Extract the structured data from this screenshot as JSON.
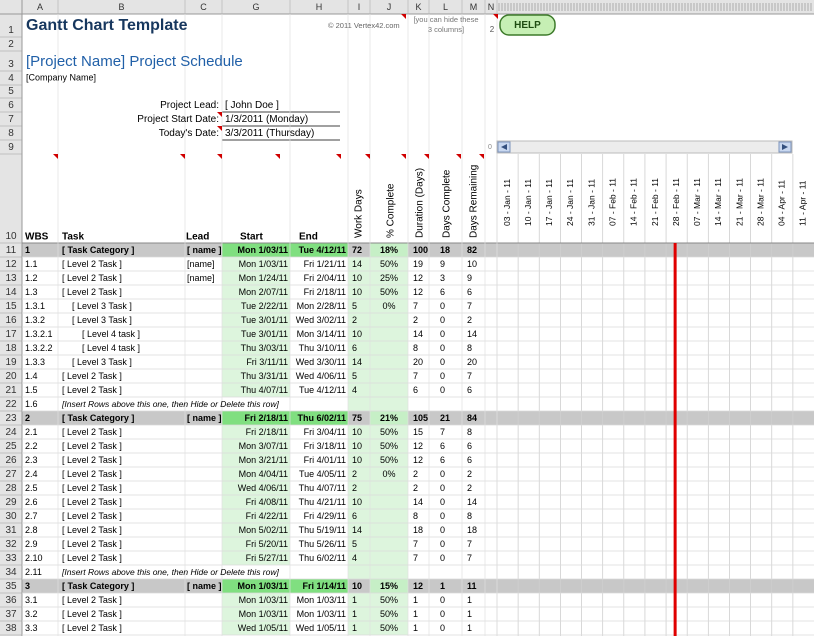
{
  "column_headers": [
    "A",
    "B",
    "C",
    "G",
    "H",
    "I",
    "J",
    "K",
    "L",
    "M",
    "N"
  ],
  "row_numbers": [
    1,
    2,
    3,
    4,
    5,
    6,
    7,
    8,
    9,
    10,
    11,
    12,
    13,
    14,
    15,
    16,
    17,
    18,
    19,
    20,
    21,
    22,
    23,
    24,
    25,
    26,
    27,
    28,
    29,
    30,
    31,
    32,
    33,
    34,
    35,
    36,
    37,
    38
  ],
  "header": {
    "title": "Gantt Chart Template",
    "copyright": "© 2011 Vertex42.com",
    "hide_note": [
      "[you can hide these",
      "3 columns]"
    ],
    "hide_count": 2,
    "help_button": "HELP",
    "project_title": "[Project Name] Project Schedule",
    "company": "[Company Name]",
    "fields": [
      {
        "label": "Project Lead:",
        "value": "[ John Doe ]"
      },
      {
        "label": "Project Start Date:",
        "value": "1/3/2011 (Monday)"
      },
      {
        "label": "Today's Date:",
        "value": "3/3/2011 (Thursday)"
      }
    ],
    "scroll_offset": 0
  },
  "table": {
    "columns": [
      "WBS",
      "Task",
      "Lead",
      "Start",
      "End",
      "Work Days",
      "% Complete",
      "Duration (Days)",
      "Days Complete",
      "Days Remaining"
    ],
    "timeline": [
      "03 - Jan - 11",
      "10 - Jan - 11",
      "17 - Jan - 11",
      "24 - Jan - 11",
      "31 - Jan - 11",
      "07 - Feb - 11",
      "14 - Feb - 11",
      "21 - Feb - 11",
      "28 - Feb - 11",
      "07 - Mar - 11",
      "14 - Mar - 11",
      "21 - Mar - 11",
      "28 - Mar - 11",
      "04 - Apr - 11",
      "11 - Apr - 11"
    ],
    "rows": [
      {
        "wbs": "1",
        "task": "[ Task Category ]",
        "lead": "[ name ]",
        "start": "Mon 1/03/11",
        "end": "Tue 4/12/11",
        "work_days": 72,
        "pct": "18%",
        "duration": 100,
        "days_complete": 18,
        "days_remaining": 82
      },
      {
        "wbs": "1.1",
        "task": "[ Level 2 Task ]",
        "lead": "[name]",
        "start": "Mon 1/03/11",
        "end": "Fri 1/21/11",
        "work_days": 14,
        "pct": "50%",
        "duration": 19,
        "days_complete": 9,
        "days_remaining": 10
      },
      {
        "wbs": "1.2",
        "task": "[ Level 2 Task ]",
        "lead": "[name]",
        "start": "Mon 1/24/11",
        "end": "Fri 2/04/11",
        "work_days": 10,
        "pct": "25%",
        "duration": 12,
        "days_complete": 3,
        "days_remaining": 9
      },
      {
        "wbs": "1.3",
        "task": "[ Level 2 Task ]",
        "start": "Mon 2/07/11",
        "end": "Fri 2/18/11",
        "work_days": 10,
        "pct": "50%",
        "duration": 12,
        "days_complete": 6,
        "days_remaining": 6
      },
      {
        "wbs": "1.3.1",
        "task": "[ Level 3 Task ]",
        "start": "Tue 2/22/11",
        "end": "Mon 2/28/11",
        "work_days": 5,
        "pct": "0%",
        "duration": 7,
        "days_complete": 0,
        "days_remaining": 7
      },
      {
        "wbs": "1.3.2",
        "task": "[ Level 3 Task ]",
        "start": "Tue 3/01/11",
        "end": "Wed 3/02/11",
        "work_days": 2,
        "duration": 2,
        "days_complete": 0,
        "days_remaining": 2
      },
      {
        "wbs": "1.3.2.1",
        "task": "[ Level 4 task ]",
        "start": "Tue 3/01/11",
        "end": "Mon 3/14/11",
        "work_days": 10,
        "duration": 14,
        "days_complete": 0,
        "days_remaining": 14
      },
      {
        "wbs": "1.3.2.2",
        "task": "[ Level 4 task ]",
        "start": "Thu 3/03/11",
        "end": "Thu 3/10/11",
        "work_days": 6,
        "duration": 8,
        "days_complete": 0,
        "days_remaining": 8
      },
      {
        "wbs": "1.3.3",
        "task": "[ Level 3 Task ]",
        "start": "Fri 3/11/11",
        "end": "Wed 3/30/11",
        "work_days": 14,
        "duration": 20,
        "days_complete": 0,
        "days_remaining": 20
      },
      {
        "wbs": "1.4",
        "task": "[ Level 2 Task ]",
        "start": "Thu 3/31/11",
        "end": "Wed 4/06/11",
        "work_days": 5,
        "duration": 7,
        "days_complete": 0,
        "days_remaining": 7
      },
      {
        "wbs": "1.5",
        "task": "[ Level 2 Task ]",
        "start": "Thu 4/07/11",
        "end": "Tue 4/12/11",
        "work_days": 4,
        "duration": 6,
        "days_complete": 0,
        "days_remaining": 6
      },
      {
        "wbs": "1.6",
        "note": "[Insert Rows above this one, then Hide or Delete this row]"
      },
      {
        "wbs": "2",
        "task": "[ Task Category ]",
        "lead": "[ name ]",
        "start": "Fri 2/18/11",
        "end": "Thu 6/02/11",
        "work_days": 75,
        "pct": "21%",
        "duration": 105,
        "days_complete": 21,
        "days_remaining": 84
      },
      {
        "wbs": "2.1",
        "task": "[ Level 2 Task ]",
        "start": "Fri 2/18/11",
        "end": "Fri 3/04/11",
        "work_days": 10,
        "pct": "50%",
        "duration": 15,
        "days_complete": 7,
        "days_remaining": 8
      },
      {
        "wbs": "2.2",
        "task": "[ Level 2 Task ]",
        "start": "Mon 3/07/11",
        "end": "Fri 3/18/11",
        "work_days": 10,
        "pct": "50%",
        "duration": 12,
        "days_complete": 6,
        "days_remaining": 6
      },
      {
        "wbs": "2.3",
        "task": "[ Level 2 Task ]",
        "start": "Mon 3/21/11",
        "end": "Fri 4/01/11",
        "work_days": 10,
        "pct": "50%",
        "duration": 12,
        "days_complete": 6,
        "days_remaining": 6
      },
      {
        "wbs": "2.4",
        "task": "[ Level 2 Task ]",
        "start": "Mon 4/04/11",
        "end": "Tue 4/05/11",
        "work_days": 2,
        "pct": "0%",
        "duration": 2,
        "days_complete": 0,
        "days_remaining": 2
      },
      {
        "wbs": "2.5",
        "task": "[ Level 2 Task ]",
        "start": "Wed 4/06/11",
        "end": "Thu 4/07/11",
        "work_days": 2,
        "duration": 2,
        "days_complete": 0,
        "days_remaining": 2
      },
      {
        "wbs": "2.6",
        "task": "[ Level 2 Task ]",
        "start": "Fri 4/08/11",
        "end": "Thu 4/21/11",
        "work_days": 10,
        "duration": 14,
        "days_complete": 0,
        "days_remaining": 14
      },
      {
        "wbs": "2.7",
        "task": "[ Level 2 Task ]",
        "start": "Fri 4/22/11",
        "end": "Fri 4/29/11",
        "work_days": 6,
        "duration": 8,
        "days_complete": 0,
        "days_remaining": 8
      },
      {
        "wbs": "2.8",
        "task": "[ Level 2 Task ]",
        "start": "Mon 5/02/11",
        "end": "Thu 5/19/11",
        "work_days": 14,
        "duration": 18,
        "days_complete": 0,
        "days_remaining": 18
      },
      {
        "wbs": "2.9",
        "task": "[ Level 2 Task ]",
        "start": "Fri 5/20/11",
        "end": "Thu 5/26/11",
        "work_days": 5,
        "duration": 7,
        "days_complete": 0,
        "days_remaining": 7
      },
      {
        "wbs": "2.10",
        "task": "[ Level 2 Task ]",
        "start": "Fri 5/27/11",
        "end": "Thu 6/02/11",
        "work_days": 4,
        "duration": 7,
        "days_complete": 0,
        "days_remaining": 7
      },
      {
        "wbs": "2.11",
        "note": "[Insert Rows above this one, then Hide or Delete this row]"
      },
      {
        "wbs": "3",
        "task": "[ Task Category ]",
        "lead": "[ name ]",
        "start": "Mon 1/03/11",
        "end": "Fri 1/14/11",
        "work_days": 10,
        "pct": "15%",
        "duration": 12,
        "days_complete": 1,
        "days_remaining": 11
      },
      {
        "wbs": "3.1",
        "task": "[ Level 2 Task ]",
        "start": "Mon 1/03/11",
        "end": "Mon 1/03/11",
        "work_days": 1,
        "pct": "50%",
        "duration": 1,
        "days_complete": 0,
        "days_remaining": 1
      },
      {
        "wbs": "3.2",
        "task": "[ Level 2 Task ]",
        "start": "Mon 1/03/11",
        "end": "Mon 1/03/11",
        "work_days": 1,
        "pct": "50%",
        "duration": 1,
        "days_complete": 0,
        "days_remaining": 1
      },
      {
        "wbs": "3.3",
        "task": "[ Level 2 Task ]",
        "start": "Wed 1/05/11",
        "end": "Wed 1/05/11",
        "work_days": 1,
        "pct": "50%",
        "duration": 1,
        "days_complete": 0,
        "days_remaining": 1
      }
    ]
  }
}
